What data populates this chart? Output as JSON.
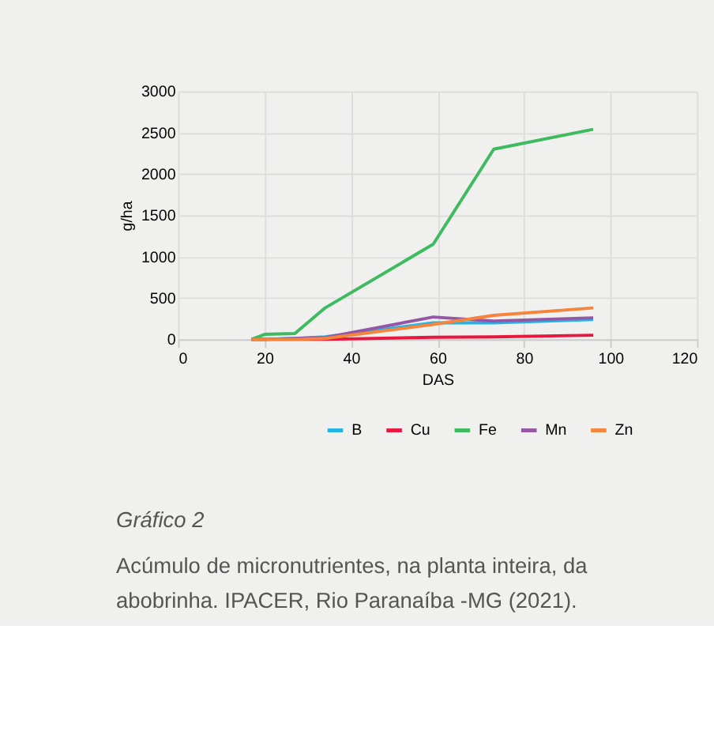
{
  "chart_data": {
    "type": "line",
    "xlabel": "DAS",
    "ylabel": "g/ha",
    "x": [
      17,
      20,
      27,
      34,
      59,
      73,
      96
    ],
    "xlim": [
      0,
      120
    ],
    "xticks": [
      0,
      20,
      40,
      60,
      80,
      100,
      120
    ],
    "ylim": [
      0,
      3000
    ],
    "yticks": [
      0,
      500,
      1000,
      1500,
      2000,
      2500,
      3000
    ],
    "grid": true,
    "legend": "bottom",
    "marker": "none",
    "line_style": "solid",
    "series": [
      {
        "name": "B",
        "color": "#1fb5e8",
        "values": [
          0,
          0,
          10,
          30,
          200,
          200,
          240
        ]
      },
      {
        "name": "Cu",
        "color": "#e8173f",
        "values": [
          0,
          0,
          0,
          0,
          25,
          30,
          50
        ]
      },
      {
        "name": "Fe",
        "color": "#3dbb5e",
        "values": [
          0,
          60,
          70,
          380,
          1150,
          2300,
          2540
        ]
      },
      {
        "name": "Mn",
        "color": "#9457a6",
        "values": [
          0,
          0,
          10,
          20,
          270,
          220,
          260
        ]
      },
      {
        "name": "Zn",
        "color": "#f5843c",
        "values": [
          0,
          0,
          0,
          10,
          180,
          290,
          380
        ]
      }
    ],
    "annotations": [
      "Gráfico 2",
      "Acúmulo de micronutrientes, na planta inteira, da abobrinha. IPACER, Rio Paranaíba -MG (2021)."
    ]
  }
}
